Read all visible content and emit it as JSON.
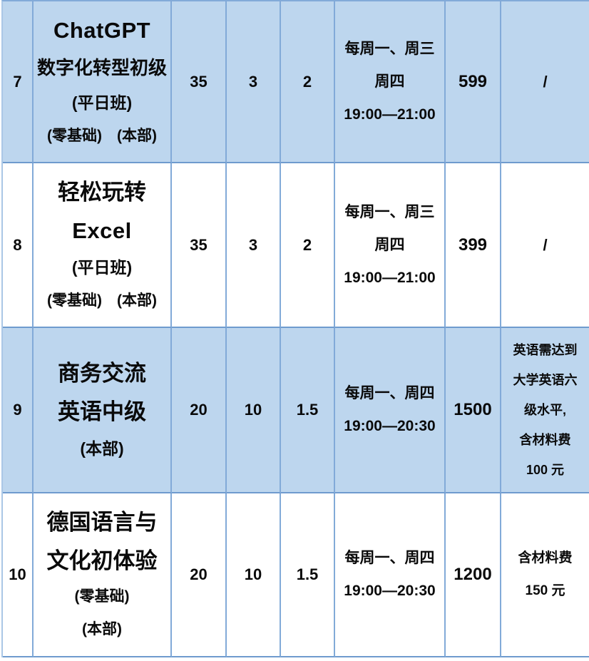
{
  "colors": {
    "row_highlight": "#bdd6ee",
    "row_plain": "#ffffff",
    "grid_border": "#82aad8",
    "text": "#0a0a0a"
  },
  "rows": [
    {
      "no": "7",
      "course": [
        "ChatGPT",
        "数字化转型初级",
        "(平日班)",
        "(零基础)　(本部)"
      ],
      "total_hours": "35",
      "per_week": "3",
      "session_hours": "2",
      "schedule": [
        "每周一、周三",
        "周四",
        "19:00—21:00"
      ],
      "price": "599",
      "note": [
        "/"
      ]
    },
    {
      "no": "8",
      "course": [
        "轻松玩转",
        "Excel",
        "(平日班)",
        "(零基础)　(本部)"
      ],
      "total_hours": "35",
      "per_week": "3",
      "session_hours": "2",
      "schedule": [
        "每周一、周三",
        "周四",
        "19:00—21:00"
      ],
      "price": "399",
      "note": [
        "/"
      ]
    },
    {
      "no": "9",
      "course": [
        "商务交流",
        "英语中级",
        "(本部)"
      ],
      "total_hours": "20",
      "per_week": "10",
      "session_hours": "1.5",
      "schedule": [
        "每周一、周四",
        "19:00—20:30"
      ],
      "price": "1500",
      "note": [
        "英语需达到",
        "大学英语六",
        "级水平,",
        "含材料费",
        "100 元"
      ]
    },
    {
      "no": "10",
      "course": [
        "德国语言与",
        "文化初体验",
        "(零基础)",
        "(本部)"
      ],
      "total_hours": "20",
      "per_week": "10",
      "session_hours": "1.5",
      "schedule": [
        "每周一、周四",
        "19:00—20:30"
      ],
      "price": "1200",
      "note": [
        "含材料费",
        "150 元"
      ]
    }
  ]
}
